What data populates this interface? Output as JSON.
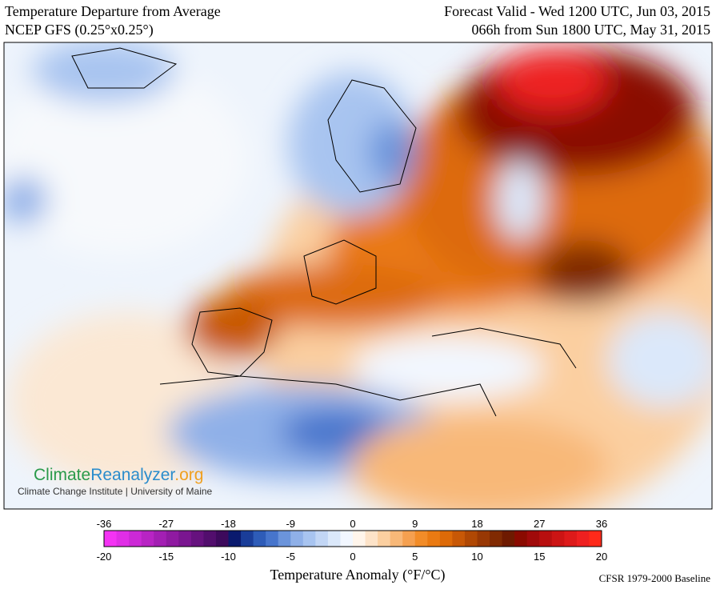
{
  "header": {
    "title_line1": "Temperature Departure from Average",
    "title_line2": "NCEP GFS (0.25°x0.25°)",
    "valid_line1": "Forecast Valid - Wed 1200 UTC, Jun 03, 2015",
    "valid_line2": "066h from Sun 1800 UTC, May 31, 2015"
  },
  "logo": {
    "name_part1": "Climate",
    "name_part2": "Reanalyzer",
    "name_part3": ".org",
    "subtitle": "Climate Change Institute | University of Maine"
  },
  "colorbar": {
    "fahrenheit_lim": [
      -36,
      36
    ],
    "fahrenheit_ticks": [
      -36,
      -27,
      -18,
      -9,
      0,
      9,
      18,
      27,
      36
    ],
    "celsius_lim": [
      -20,
      20
    ],
    "celsius_ticks": [
      -20,
      -15,
      -10,
      -5,
      0,
      5,
      10,
      15,
      20
    ],
    "colors": [
      "#f433f4",
      "#e02ee6",
      "#cc29d6",
      "#b824c4",
      "#a31fb3",
      "#8f1aa1",
      "#7a1690",
      "#66127e",
      "#520e6d",
      "#3d0a5c",
      "#0a1a6e",
      "#1a3d99",
      "#2e5cb8",
      "#4775cc",
      "#6b94db",
      "#8fb0e8",
      "#a8c4f0",
      "#c2d6f5",
      "#dbe8fa",
      "#f2f7ff",
      "#fff5eb",
      "#fde3c8",
      "#fbcfa0",
      "#f8b878",
      "#f5a050",
      "#f28c28",
      "#ea7a12",
      "#dd6a08",
      "#c85806",
      "#b04804",
      "#983804",
      "#802a02",
      "#6e1a00",
      "#8a0a00",
      "#a00a0a",
      "#b80f0f",
      "#cc1414",
      "#dd1a1a",
      "#ee2020",
      "#ff2a1a"
    ],
    "label": "Temperature Anomaly (°F/°C)",
    "baseline": "CFSR 1979-2000 Baseline"
  }
}
